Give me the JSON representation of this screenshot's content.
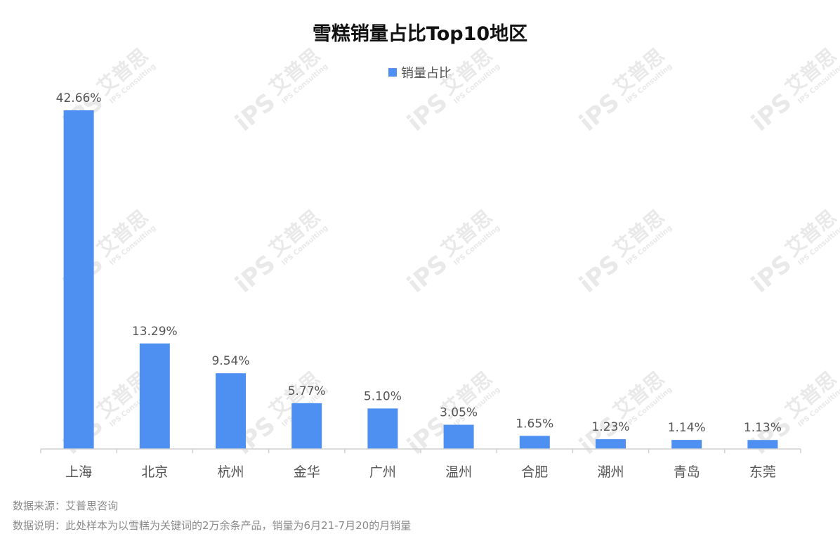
{
  "chart_data": {
    "type": "bar",
    "title": "雪糕销量占比Top10地区",
    "series": [
      {
        "name": "销量占比",
        "values": [
          42.66,
          13.29,
          9.54,
          5.77,
          5.1,
          3.05,
          1.65,
          1.23,
          1.14,
          1.13
        ],
        "labels": [
          "42.66%",
          "13.29%",
          "9.54%",
          "5.77%",
          "5.10%",
          "3.05%",
          "1.65%",
          "1.23%",
          "1.14%",
          "1.13%"
        ],
        "color": "#4e8ff2"
      }
    ],
    "categories": [
      "上海",
      "北京",
      "杭州",
      "金华",
      "广州",
      "温州",
      "合肥",
      "潮州",
      "青岛",
      "东莞"
    ],
    "ylim": [
      0,
      42.66
    ],
    "xlabel": "",
    "ylabel": "",
    "grid": false,
    "legend": "top-center"
  },
  "footnotes": {
    "source": "数据来源：艾普思咨询",
    "note": "数据说明：此处样本为以雪糕为关键词的2万余条产品，销量为6月21-7月20的月销量"
  },
  "watermark": {
    "brand": "艾普思",
    "logo": "iPS",
    "sub": "IPS Consulting"
  }
}
